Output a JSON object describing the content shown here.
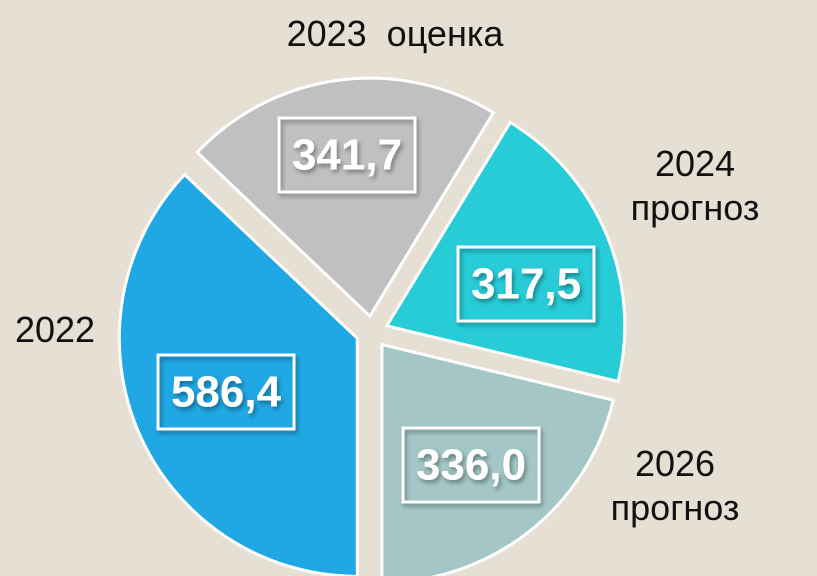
{
  "chart_data": {
    "type": "pie",
    "categories": [
      "2022",
      "2023  оценка",
      "2024 прогноз",
      "2026 прогноз"
    ],
    "values": [
      586.4,
      341.7,
      317.5,
      336.0
    ],
    "value_labels": [
      "586,4",
      "341,7",
      "317,5",
      "336,0"
    ],
    "colors": [
      "#1fa8e4",
      "#c0c0c0",
      "#27ccd7",
      "#a4c6c6"
    ]
  }
}
